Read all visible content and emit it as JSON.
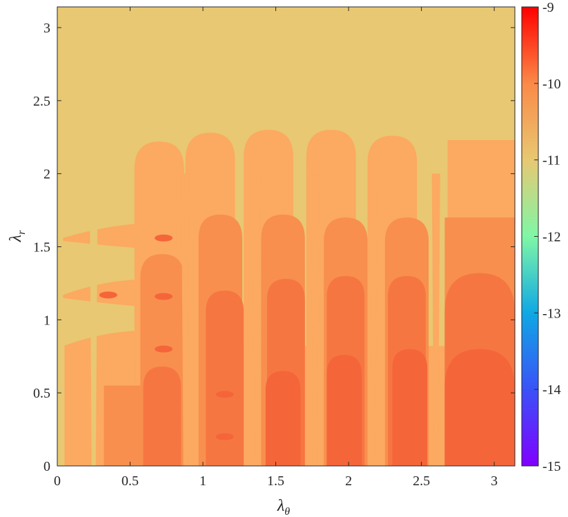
{
  "chart_data": {
    "type": "heatmap",
    "subtype": "filled-contour",
    "xlabel": "λ",
    "xlabel_subscript": "θ",
    "ylabel": "λ",
    "ylabel_subscript": "r",
    "xlim": [
      0,
      3.1416
    ],
    "ylim": [
      0,
      3.1416
    ],
    "x_ticks": [
      0,
      0.5,
      1,
      1.5,
      2,
      2.5,
      3
    ],
    "x_tick_labels": [
      "0",
      "0.5",
      "1",
      "1.5",
      "2",
      "2.5",
      "3"
    ],
    "y_ticks": [
      0,
      0.5,
      1,
      1.5,
      2,
      2.5,
      3
    ],
    "y_tick_labels": [
      "0",
      "0.5",
      "1",
      "1.5",
      "2",
      "2.5",
      "3"
    ],
    "colorbar": {
      "range": [
        -15,
        -9
      ],
      "ticks": [
        -15,
        -14,
        -13,
        -12,
        -11,
        -10,
        -9
      ],
      "tick_labels": [
        "-15",
        "-14",
        "-13",
        "-12",
        "-11",
        "-10",
        "-9"
      ],
      "colormap": "rainbow"
    },
    "levels": {
      "background": -10.9,
      "level1": -10.5,
      "level2": -10.2,
      "level3": -9.9,
      "level4": -9.7
    },
    "level_colors": {
      "background": "#E8C872",
      "level1": "#FCA961",
      "level2": "#F88F4E",
      "level3": "#F67641",
      "level4": "#F5653A"
    },
    "regions": {
      "fingers": [
        {
          "x": 0.7,
          "top": 2.22
        },
        {
          "x": 1.05,
          "top": 2.28
        },
        {
          "x": 1.45,
          "top": 2.3
        },
        {
          "x": 1.88,
          "top": 2.3
        },
        {
          "x": 2.3,
          "top": 2.26
        }
      ],
      "right_block": {
        "x0": 2.68,
        "x1": 3.1416,
        "top": 2.23
      },
      "shelves": [
        {
          "x0": 0.04,
          "x1": 1.1,
          "y": 1.56
        },
        {
          "x0": 0.04,
          "x1": 0.9,
          "y": 1.17
        },
        {
          "x0": 0.04,
          "x1": 0.9,
          "y": 0.82
        }
      ],
      "mid_bands": [
        {
          "x": 0.72,
          "top": 1.45
        },
        {
          "x": 1.12,
          "top": 1.72
        },
        {
          "x": 1.55,
          "top": 1.72
        },
        {
          "x": 1.98,
          "top": 1.7
        },
        {
          "x": 2.4,
          "top": 1.7
        }
      ],
      "deep_bumps": [
        {
          "x": 0.72,
          "top": 0.68
        },
        {
          "x": 1.15,
          "top": 1.2
        },
        {
          "x": 1.57,
          "top": 1.28
        },
        {
          "x": 1.98,
          "top": 1.3
        },
        {
          "x": 2.4,
          "top": 1.3
        },
        {
          "x": 2.9,
          "top": 1.32
        }
      ],
      "darkest_domes": [
        {
          "x": 1.55,
          "top": 0.65
        },
        {
          "x": 1.97,
          "top": 0.76
        },
        {
          "x": 2.42,
          "top": 0.8
        },
        {
          "x": 2.9,
          "top": 0.8
        }
      ],
      "gaps": [
        0.25,
        0.88,
        1.37,
        1.77,
        2.17,
        2.6
      ],
      "islands": [
        {
          "x": 0.35,
          "y": 1.17
        },
        {
          "x": 0.73,
          "y": 1.56
        },
        {
          "x": 0.73,
          "y": 1.16
        },
        {
          "x": 0.73,
          "y": 0.8
        },
        {
          "x": 1.15,
          "y": 0.49
        },
        {
          "x": 1.15,
          "y": 0.2
        }
      ]
    }
  }
}
